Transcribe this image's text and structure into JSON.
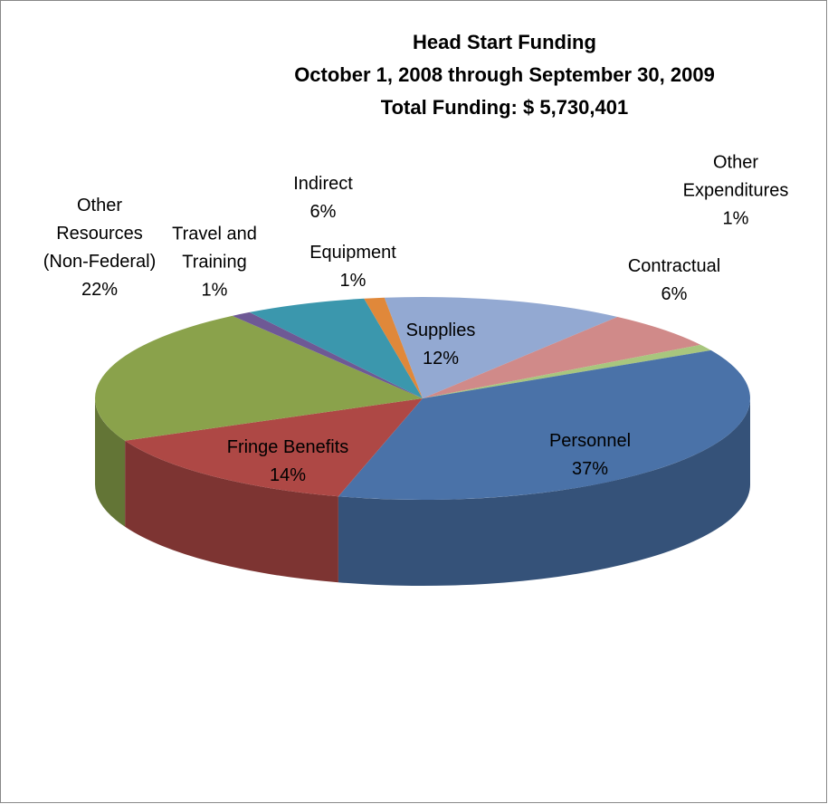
{
  "chart_data": {
    "type": "pie3d",
    "title": "Head Start Funding",
    "subtitle": "October 1, 2008 through September 30, 2009",
    "annotation": "Total Funding: $ 5,730,401",
    "categories": [
      "Supplies",
      "Contractual",
      "Other Expenditures",
      "Personnel",
      "Fringe Benefits",
      "Other Resources (Non-Federal)",
      "Travel and Training",
      "Indirect",
      "Equipment"
    ],
    "values": [
      12,
      6,
      1,
      37,
      14,
      22,
      1,
      6,
      1
    ],
    "value_labels": [
      "12%",
      "6%",
      "1%",
      "37%",
      "14%",
      "22%",
      "1%",
      "6%",
      "1%"
    ],
    "colors": [
      "#93a9d2",
      "#d08a89",
      "#a8c67e",
      "#4a72a8",
      "#ae4845",
      "#8aa24b",
      "#6e5995",
      "#3b97ad",
      "#e0883a"
    ]
  }
}
